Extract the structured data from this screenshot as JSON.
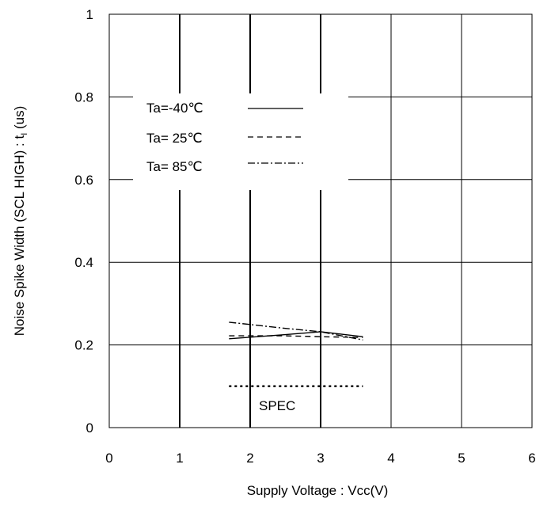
{
  "chart_data": {
    "type": "line",
    "title": "",
    "xlabel": "Supply Voltage : Vcc(V)",
    "ylabel_main": "Noise Spike Width (SCL HIGH) : t",
    "ylabel_sub": "I",
    "ylabel_unit": " (us)",
    "xlim": [
      0,
      6
    ],
    "ylim": [
      0,
      1
    ],
    "x_ticks": [
      "0",
      "1",
      "2",
      "3",
      "4",
      "5",
      "6"
    ],
    "y_ticks": [
      "0",
      "0.2",
      "0.4",
      "0.6",
      "0.8",
      "1"
    ],
    "grid": true,
    "legend_position": "top-left",
    "series": [
      {
        "name": "Ta=-40℃",
        "style": "solid",
        "x": [
          1.7,
          2.5,
          3.0,
          3.6
        ],
        "y": [
          0.215,
          0.225,
          0.232,
          0.22
        ]
      },
      {
        "name": "Ta= 25℃",
        "style": "dashed",
        "x": [
          1.7,
          2.5,
          3.0,
          3.6
        ],
        "y": [
          0.222,
          0.222,
          0.22,
          0.218
        ]
      },
      {
        "name": "Ta= 85℃",
        "style": "dashdot",
        "x": [
          1.7,
          2.5,
          3.0,
          3.6
        ],
        "y": [
          0.255,
          0.24,
          0.232,
          0.212
        ]
      }
    ],
    "spec": {
      "label": "SPEC",
      "style": "dotted",
      "x": [
        1.7,
        3.6
      ],
      "y": [
        0.1,
        0.1
      ]
    }
  }
}
